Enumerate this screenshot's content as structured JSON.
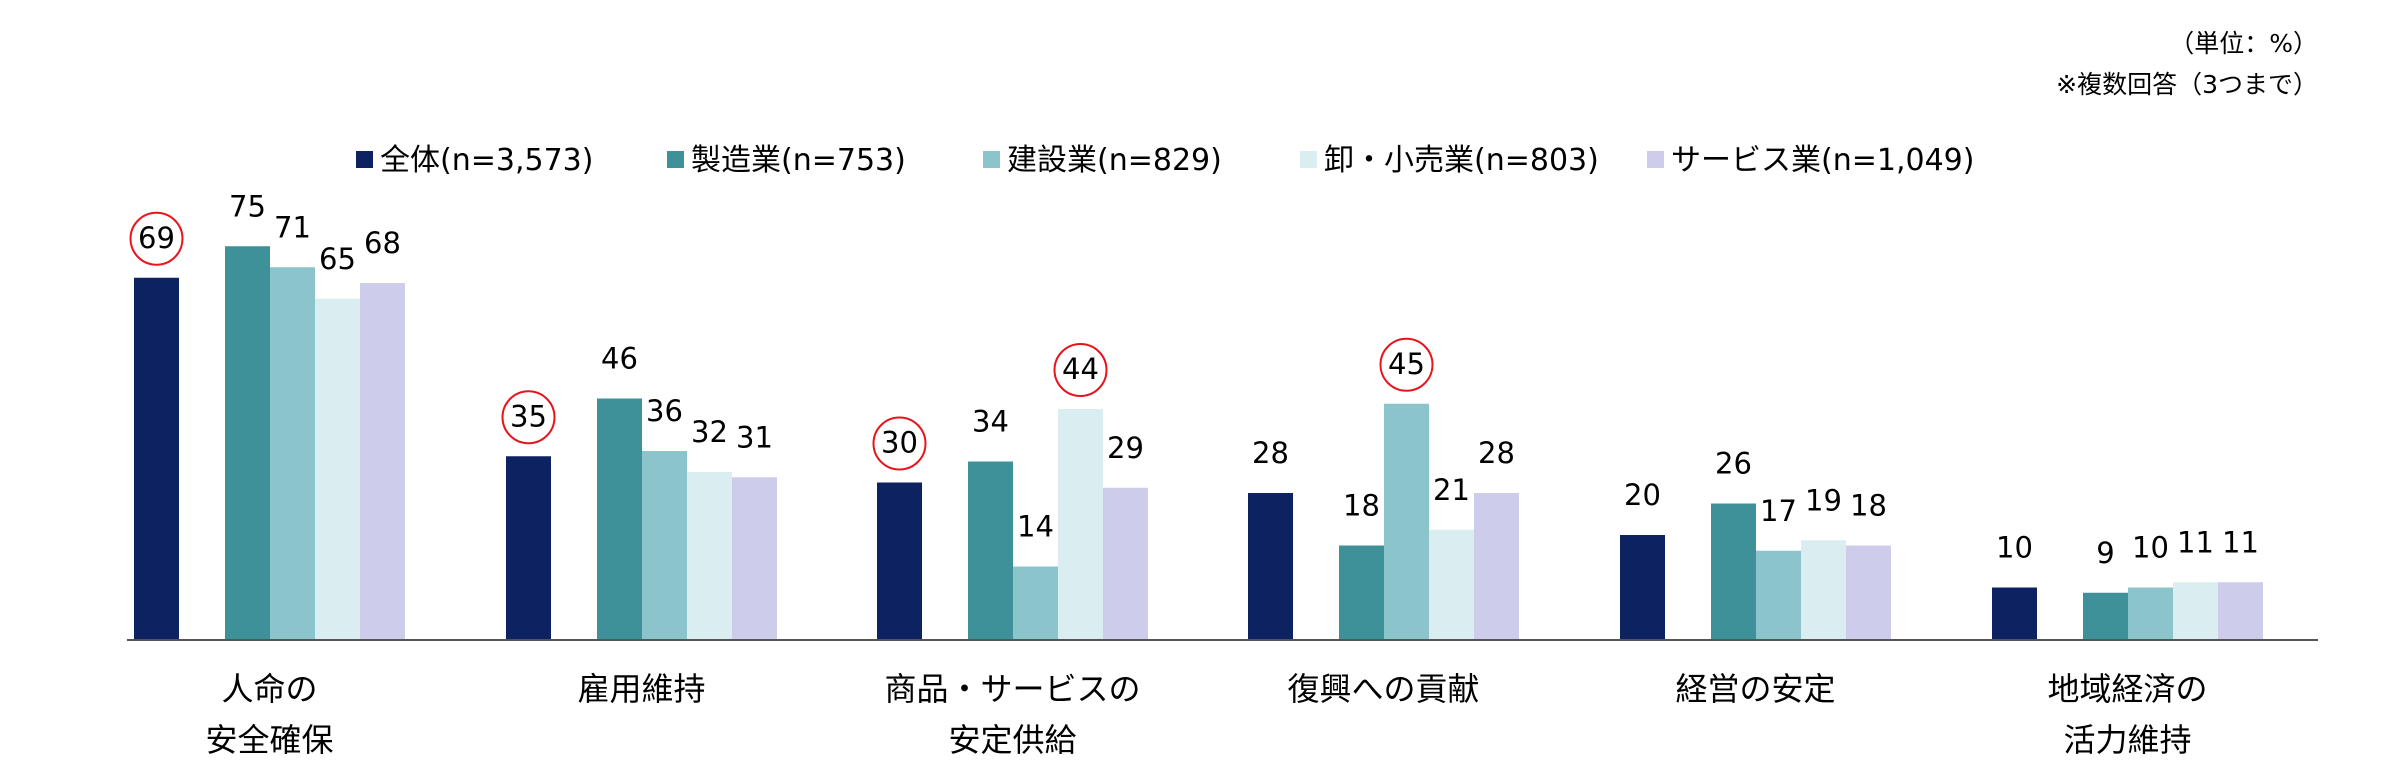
{
  "notes": {
    "unit": "（単位：%）",
    "multi": "※複数回答（3つまで）"
  },
  "chart_data": {
    "type": "bar",
    "categories": [
      [
        "人命の",
        "安全確保"
      ],
      [
        "雇用維持"
      ],
      [
        "商品・サービスの",
        "安定供給"
      ],
      [
        "復興への貢献"
      ],
      [
        "経営の安定"
      ],
      [
        "地域経済の",
        "活力維持"
      ]
    ],
    "series": [
      {
        "name": "全体(n=3,573)",
        "color": "#0d2260",
        "values": [
          69,
          35,
          30,
          28,
          20,
          10
        ]
      },
      {
        "name": "製造業(n=753)",
        "color": "#3e9199",
        "values": [
          75,
          46,
          34,
          18,
          26,
          9
        ]
      },
      {
        "name": "建設業(n=829)",
        "color": "#8cc4cc",
        "values": [
          71,
          36,
          14,
          45,
          17,
          10
        ]
      },
      {
        "name": "卸・小売業(n=803)",
        "color": "#daedf0",
        "values": [
          65,
          32,
          44,
          21,
          19,
          11
        ]
      },
      {
        "name": "サービス業(n=1,049)",
        "color": "#cdcceb",
        "values": [
          68,
          31,
          29,
          28,
          18,
          11
        ]
      }
    ],
    "ylim": [
      0,
      80
    ],
    "grid": false,
    "legend_position": "top",
    "highlight_color": "#e8141c",
    "highlights": [
      {
        "category": 0,
        "series": 0
      },
      {
        "category": 1,
        "series": 0
      },
      {
        "category": 2,
        "series": 0
      },
      {
        "category": 2,
        "series": 3
      },
      {
        "category": 3,
        "series": 2
      }
    ]
  }
}
